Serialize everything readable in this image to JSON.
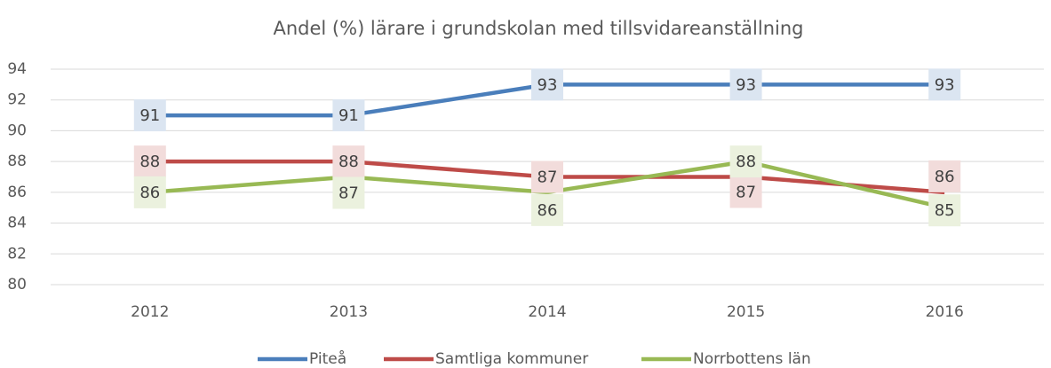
{
  "chart_data": {
    "type": "line",
    "title": "Andel (%) lärare i grundskolan med tillsvidareanställning",
    "categories": [
      "2012",
      "2013",
      "2014",
      "2015",
      "2016"
    ],
    "series": [
      {
        "name": "Piteå",
        "color": "#4a7ebb",
        "values": [
          91,
          91,
          93,
          93,
          93
        ]
      },
      {
        "name": "Samtliga kommuner",
        "color": "#be4b48",
        "values": [
          88,
          88,
          87,
          87,
          86
        ]
      },
      {
        "name": "Norrbottens län",
        "color": "#98b954",
        "values": [
          86,
          87,
          86,
          88,
          85
        ]
      }
    ],
    "ylim": [
      80,
      94
    ],
    "yticks": [
      80,
      82,
      84,
      86,
      88,
      90,
      92,
      94
    ],
    "grid": true,
    "legend": "bottom"
  }
}
